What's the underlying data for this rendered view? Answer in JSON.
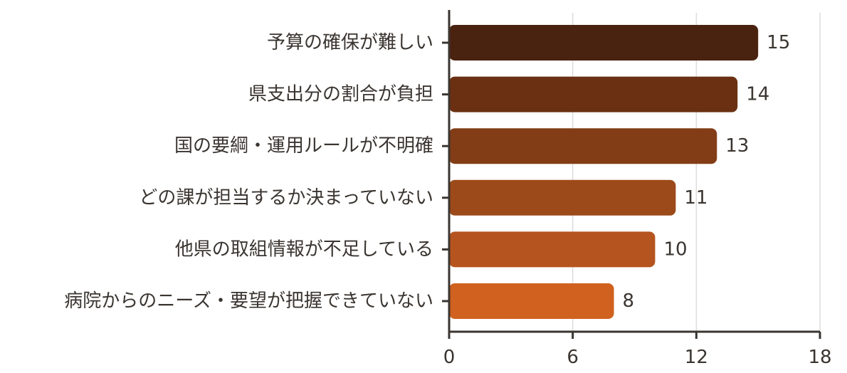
{
  "chart_data": {
    "type": "bar",
    "orientation": "horizontal",
    "categories": [
      "予算の確保が難しい",
      "県支出分の割合が負担",
      "国の要綱・運用ルールが不明確",
      "どの課が担当するか決まっていない",
      "他県の取組情報が不足している",
      "病院からのニーズ・要望が把握できていない"
    ],
    "values": [
      15,
      14,
      13,
      11,
      10,
      8
    ],
    "colors": [
      "#4a2210",
      "#6a3011",
      "#833d16",
      "#9c4a1a",
      "#b6541f",
      "#d0611f"
    ],
    "xlim": [
      0,
      18
    ],
    "xticks": [
      0,
      6,
      12,
      18
    ],
    "xtick_labels": [
      "0",
      "6",
      "12",
      "18"
    ],
    "grid": true,
    "title": "",
    "xlabel": "",
    "ylabel": ""
  }
}
